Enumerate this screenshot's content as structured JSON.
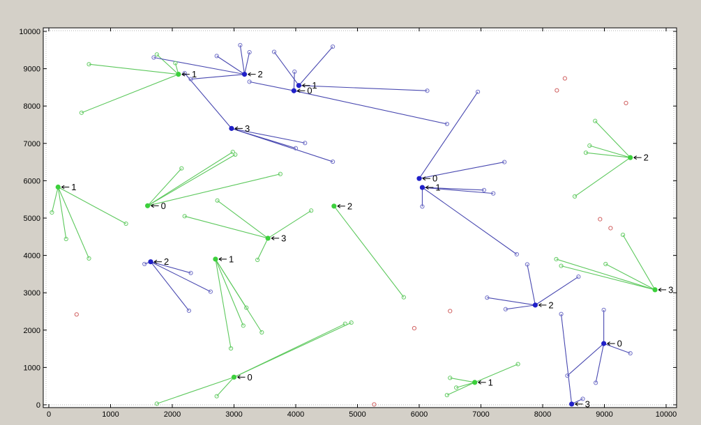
{
  "chart_data": {
    "type": "scatter",
    "title": "",
    "xlabel": "",
    "ylabel": "",
    "xlim": [
      0,
      10000
    ],
    "ylim": [
      0,
      10000
    ],
    "x_ticks": [
      "0",
      "1000",
      "2000",
      "3000",
      "4000",
      "5000",
      "6000",
      "7000",
      "8000",
      "9000",
      "10000"
    ],
    "y_ticks": [
      "0",
      "1000",
      "2000",
      "3000",
      "4000",
      "5000",
      "6000",
      "7000",
      "8000",
      "9000",
      "10000"
    ],
    "grid": false,
    "legend": "none",
    "colors": {
      "green_line": "#5cc85c",
      "green_hub": "#3cd03c",
      "green_point": "#66cc66",
      "blue_line": "#4848b0",
      "blue_hub": "#2020c8",
      "blue_point": "#7070c8",
      "red_point": "#d06060",
      "background": "#d4d0c8",
      "plot_bg": "#ffffff"
    },
    "clusters": [
      {
        "group": "green",
        "hub": [
          2100,
          8850
        ],
        "label": "1",
        "members": [
          [
            650,
            9120
          ],
          [
            530,
            7820
          ],
          [
            1750,
            9380
          ],
          [
            2050,
            9150
          ]
        ]
      },
      {
        "group": "green",
        "hub": [
          150,
          5830
        ],
        "label": "1",
        "members": [
          [
            50,
            5150
          ],
          [
            280,
            4440
          ],
          [
            650,
            3920
          ],
          [
            1250,
            4850
          ]
        ]
      },
      {
        "group": "green",
        "hub": [
          1600,
          5330
        ],
        "label": "0",
        "members": [
          [
            2150,
            6330
          ],
          [
            2980,
            6770
          ],
          [
            3020,
            6700
          ],
          [
            3750,
            6180
          ]
        ]
      },
      {
        "group": "green",
        "hub": [
          4620,
          5320
        ],
        "label": "2",
        "members": [
          [
            5750,
            2880
          ]
        ]
      },
      {
        "group": "green",
        "hub": [
          3550,
          4460
        ],
        "label": "3",
        "members": [
          [
            2200,
            5050
          ],
          [
            2730,
            5470
          ],
          [
            3380,
            3880
          ],
          [
            4250,
            5200
          ]
        ]
      },
      {
        "group": "green",
        "hub": [
          2700,
          3900
        ],
        "label": "1",
        "members": [
          [
            2950,
            1510
          ],
          [
            3150,
            2120
          ],
          [
            3200,
            2600
          ],
          [
            3450,
            1940
          ]
        ]
      },
      {
        "group": "green",
        "hub": [
          3000,
          740
        ],
        "label": "0",
        "members": [
          [
            1750,
            30
          ],
          [
            2720,
            230
          ],
          [
            4800,
            2170
          ],
          [
            4900,
            2200
          ]
        ]
      },
      {
        "group": "green",
        "hub": [
          6900,
          600
        ],
        "label": "1",
        "members": [
          [
            6500,
            720
          ],
          [
            6600,
            460
          ],
          [
            6450,
            260
          ],
          [
            7600,
            1090
          ]
        ]
      },
      {
        "group": "green",
        "hub": [
          9420,
          6620
        ],
        "label": "2",
        "members": [
          [
            8850,
            7600
          ],
          [
            8760,
            6940
          ],
          [
            8700,
            6750
          ],
          [
            8520,
            5580
          ]
        ]
      },
      {
        "group": "green",
        "hub": [
          9820,
          3080
        ],
        "label": "3",
        "members": [
          [
            9300,
            4550
          ],
          [
            9020,
            3770
          ],
          [
            8220,
            3900
          ],
          [
            8300,
            3720
          ]
        ]
      },
      {
        "group": "blue",
        "hub": [
          3170,
          8850
        ],
        "label": "2",
        "members": [
          [
            1700,
            9300
          ],
          [
            2300,
            8720
          ],
          [
            2720,
            9340
          ],
          [
            3100,
            9630
          ],
          [
            3250,
            9440
          ]
        ]
      },
      {
        "group": "blue",
        "hub": [
          4050,
          8550
        ],
        "label": "1",
        "members": [
          [
            3650,
            9450
          ],
          [
            4600,
            9590
          ],
          [
            6130,
            8410
          ]
        ]
      },
      {
        "group": "blue",
        "hub": [
          3970,
          8410
        ],
        "label": "0",
        "members": [
          [
            3250,
            8650
          ],
          [
            3980,
            8920
          ],
          [
            6450,
            7520
          ]
        ]
      },
      {
        "group": "blue",
        "hub": [
          2960,
          7400
        ],
        "label": "3",
        "members": [
          [
            2200,
            8880
          ],
          [
            4150,
            7010
          ],
          [
            4000,
            6870
          ],
          [
            4600,
            6510
          ]
        ]
      },
      {
        "group": "blue",
        "hub": [
          6000,
          6060
        ],
        "label": "0",
        "members": [
          [
            6950,
            8380
          ],
          [
            7380,
            6500
          ]
        ]
      },
      {
        "group": "blue",
        "hub": [
          6050,
          5820
        ],
        "label": "1",
        "members": [
          [
            6050,
            5310
          ],
          [
            7050,
            5750
          ],
          [
            7200,
            5660
          ],
          [
            7580,
            4030
          ]
        ]
      },
      {
        "group": "blue",
        "hub": [
          1650,
          3830
        ],
        "label": "2",
        "members": [
          [
            1550,
            3770
          ],
          [
            2300,
            3530
          ],
          [
            2620,
            3030
          ],
          [
            2270,
            2520
          ]
        ]
      },
      {
        "group": "blue",
        "hub": [
          7880,
          2670
        ],
        "label": "2",
        "members": [
          [
            7400,
            2560
          ],
          [
            7100,
            2870
          ],
          [
            7750,
            3760
          ],
          [
            8580,
            3430
          ]
        ]
      },
      {
        "group": "blue",
        "hub": [
          8990,
          1640
        ],
        "label": "0",
        "members": [
          [
            8990,
            2540
          ],
          [
            9420,
            1380
          ],
          [
            8860,
            590
          ],
          [
            8400,
            780
          ]
        ]
      },
      {
        "group": "blue",
        "hub": [
          8470,
          20
        ],
        "label": "3",
        "members": [
          [
            8300,
            2430
          ],
          [
            8650,
            160
          ]
        ]
      }
    ],
    "outliers": [
      [
        8230,
        8420
      ],
      [
        8360,
        8740
      ],
      [
        9350,
        8080
      ],
      [
        8930,
        4970
      ],
      [
        9100,
        4730
      ],
      [
        450,
        2420
      ],
      [
        6500,
        2510
      ],
      [
        5920,
        2050
      ],
      [
        5270,
        10
      ]
    ]
  }
}
